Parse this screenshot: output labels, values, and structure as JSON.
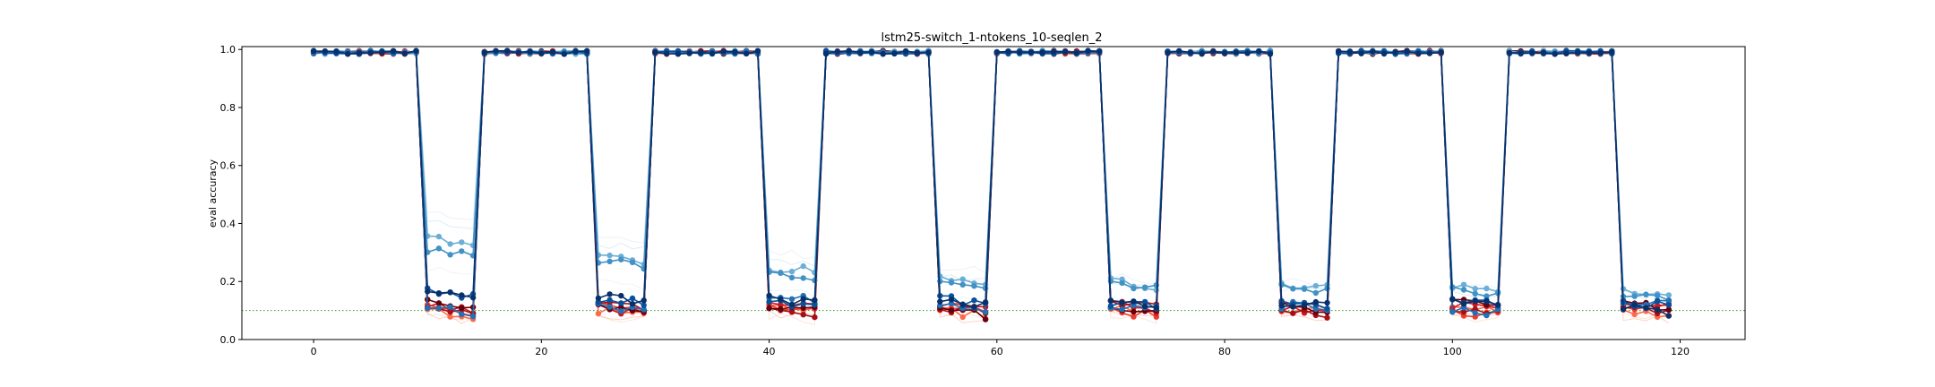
{
  "chart_data": {
    "type": "line",
    "title": "lstm25-switch_1-ntokens_10-seqlen_2",
    "xlabel": "",
    "ylabel": "eval accuracy",
    "xlim": [
      -6.3,
      125.7
    ],
    "ylim": [
      0.0,
      1.01
    ],
    "x_ticks": [
      0,
      20,
      40,
      60,
      80,
      100,
      120
    ],
    "x_tick_labels": [
      "0",
      "20",
      "40",
      "60",
      "80",
      "100",
      "120"
    ],
    "y_ticks": [
      0.0,
      0.2,
      0.4,
      0.6,
      0.8,
      1.0
    ],
    "y_tick_labels": [
      "0.0",
      "0.2",
      "0.4",
      "0.6",
      "0.8",
      "1.0"
    ],
    "grid": false,
    "legend": "none",
    "reference_line": {
      "y": 0.1,
      "color": "#2ca02c",
      "style": "dotted"
    },
    "task_blocks": [
      [
        0,
        9
      ],
      [
        10,
        14
      ],
      [
        15,
        24
      ],
      [
        25,
        29
      ],
      [
        30,
        39
      ],
      [
        40,
        44
      ],
      [
        45,
        54
      ],
      [
        55,
        59
      ],
      [
        60,
        69
      ],
      [
        70,
        74
      ],
      [
        75,
        84
      ],
      [
        85,
        89
      ],
      [
        90,
        99
      ],
      [
        100,
        104
      ],
      [
        105,
        114
      ],
      [
        115,
        119
      ]
    ],
    "high_phase_level": 0.99,
    "series": [
      {
        "color": "#c6dbef",
        "alpha": 0.35,
        "marker": false,
        "low_levels": [
          0.44,
          0.36,
          0.3,
          0.25,
          0.22,
          0.2,
          0.19,
          0.18
        ]
      },
      {
        "color": "#9ecae1",
        "alpha": 0.35,
        "marker": false,
        "low_levels": [
          0.4,
          0.33,
          0.27,
          0.22,
          0.2,
          0.18,
          0.17,
          0.16
        ]
      },
      {
        "color": "#c6dbef",
        "alpha": 0.3,
        "marker": false,
        "low_levels": [
          0.25,
          0.2,
          0.17,
          0.15,
          0.14,
          0.13,
          0.13,
          0.12
        ]
      },
      {
        "color": "#fcbba1",
        "alpha": 0.4,
        "marker": false,
        "low_levels": [
          0.09,
          0.08,
          0.08,
          0.09,
          0.08,
          0.09,
          0.08,
          0.09
        ]
      },
      {
        "color": "#fc9272",
        "alpha": 0.4,
        "marker": false,
        "low_levels": [
          0.08,
          0.09,
          0.09,
          0.08,
          0.09,
          0.08,
          0.09,
          0.08
        ]
      },
      {
        "color": "#fb6a4a",
        "marker": true,
        "low_levels": [
          0.1,
          0.1,
          0.11,
          0.1,
          0.11,
          0.11,
          0.11,
          0.1
        ]
      },
      {
        "color": "#ef3b2c",
        "marker": true,
        "low_levels": [
          0.11,
          0.12,
          0.11,
          0.11,
          0.1,
          0.12,
          0.1,
          0.12
        ]
      },
      {
        "color": "#cb181d",
        "marker": true,
        "low_levels": [
          0.12,
          0.11,
          0.13,
          0.12,
          0.12,
          0.11,
          0.12,
          0.13
        ]
      },
      {
        "color": "#a50f15",
        "marker": true,
        "low_levels": [
          0.1,
          0.13,
          0.1,
          0.11,
          0.13,
          0.1,
          0.11,
          0.11
        ]
      },
      {
        "color": "#67000d",
        "marker": true,
        "low_levels": [
          0.13,
          0.12,
          0.12,
          0.1,
          0.11,
          0.12,
          0.13,
          0.12
        ]
      },
      {
        "color": "#6baed6",
        "marker": true,
        "low_levels": [
          0.35,
          0.28,
          0.25,
          0.21,
          0.2,
          0.19,
          0.18,
          0.17
        ]
      },
      {
        "color": "#4292c6",
        "marker": true,
        "low_levels": [
          0.31,
          0.27,
          0.22,
          0.2,
          0.19,
          0.18,
          0.17,
          0.16
        ]
      },
      {
        "color": "#2171b5",
        "marker": true,
        "low_levels": [
          0.11,
          0.12,
          0.15,
          0.12,
          0.12,
          0.12,
          0.11,
          0.14
        ]
      },
      {
        "color": "#08519c",
        "marker": true,
        "low_levels": [
          0.17,
          0.14,
          0.13,
          0.14,
          0.13,
          0.13,
          0.14,
          0.13
        ]
      },
      {
        "color": "#08306b",
        "marker": true,
        "low_levels": [
          0.16,
          0.15,
          0.14,
          0.13,
          0.14,
          0.13,
          0.13,
          0.11
        ]
      }
    ]
  }
}
